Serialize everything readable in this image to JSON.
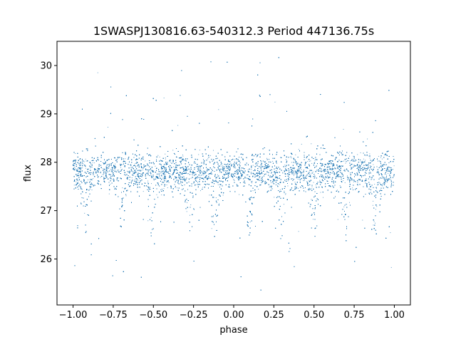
{
  "chart_data": {
    "type": "scatter",
    "title": "1SWASPJ130816.63-540312.3 Period 447136.75s",
    "xlabel": "phase",
    "ylabel": "flux",
    "xlim": [
      -1.1,
      1.1
    ],
    "ylim": [
      25.05,
      30.5
    ],
    "xticks": [
      -1.0,
      -0.75,
      -0.5,
      -0.25,
      0.0,
      0.25,
      0.5,
      0.75,
      1.0
    ],
    "xtick_labels": [
      "−1.00",
      "−0.75",
      "−0.50",
      "−0.25",
      "0.00",
      "0.25",
      "0.50",
      "0.75",
      "1.00"
    ],
    "yticks": [
      26,
      27,
      28,
      29,
      30
    ],
    "ytick_labels": [
      "26",
      "27",
      "28",
      "29",
      "30"
    ],
    "grid": false,
    "marker_color": "#1f77b4",
    "series": [
      {
        "x_range": [
          -1.0,
          1.0
        ],
        "baseline_flux": 27.8,
        "band_half_width": 0.35,
        "dip_phases": [
          -0.92,
          -0.7,
          -0.5,
          -0.27,
          -0.12,
          0.1,
          0.3,
          0.5,
          0.7,
          0.88
        ],
        "dip_min_flux": 26.9,
        "flux_range": [
          25.3,
          30.2
        ],
        "sample_points": [
          [
            -1.0,
            27.8
          ],
          [
            -0.95,
            27.9
          ],
          [
            -0.92,
            27.0
          ],
          [
            -0.9,
            26.7
          ],
          [
            -0.85,
            27.8
          ],
          [
            -0.75,
            27.8
          ],
          [
            -0.7,
            27.0
          ],
          [
            -0.6,
            27.9
          ],
          [
            -0.5,
            27.1
          ],
          [
            -0.45,
            27.8
          ],
          [
            -0.3,
            27.7
          ],
          [
            -0.27,
            27.0
          ],
          [
            -0.2,
            27.8
          ],
          [
            -0.12,
            26.9
          ],
          [
            0.0,
            27.8
          ],
          [
            0.1,
            27.0
          ],
          [
            0.2,
            27.8
          ],
          [
            0.3,
            27.1
          ],
          [
            0.4,
            27.9
          ],
          [
            0.5,
            27.1
          ],
          [
            0.6,
            27.8
          ],
          [
            0.7,
            27.0
          ],
          [
            0.8,
            27.8
          ],
          [
            0.88,
            27.0
          ],
          [
            1.0,
            27.8
          ]
        ]
      }
    ]
  }
}
